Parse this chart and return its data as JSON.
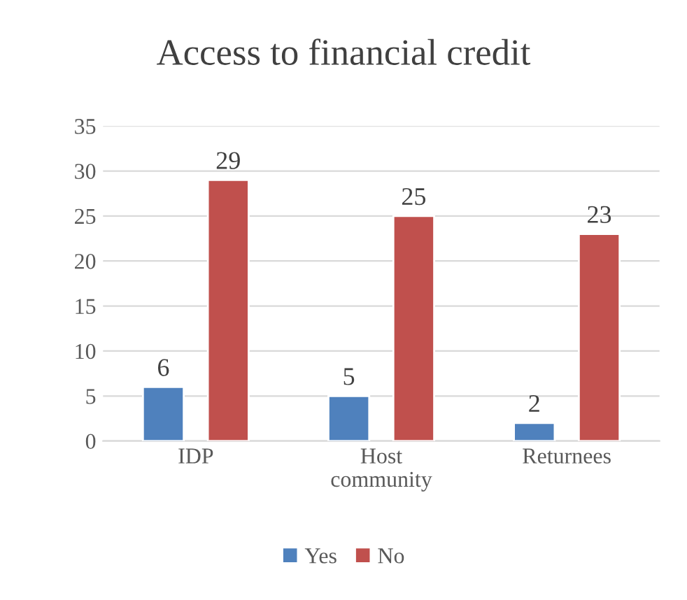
{
  "chart_data": {
    "type": "bar",
    "title": "Access to financial credit",
    "categories": [
      "IDP",
      "Host\ncommunity",
      "Returnees"
    ],
    "series": [
      {
        "name": "Yes",
        "color": "#4f81bd",
        "values": [
          6,
          5,
          2
        ]
      },
      {
        "name": "No",
        "color": "#c0504d",
        "values": [
          29,
          25,
          23
        ]
      }
    ],
    "ylim": [
      0,
      35
    ],
    "yticks": [
      0,
      5,
      10,
      15,
      20,
      25,
      30,
      35
    ],
    "grid": "y",
    "legend": "bottom",
    "data_labels": true
  }
}
